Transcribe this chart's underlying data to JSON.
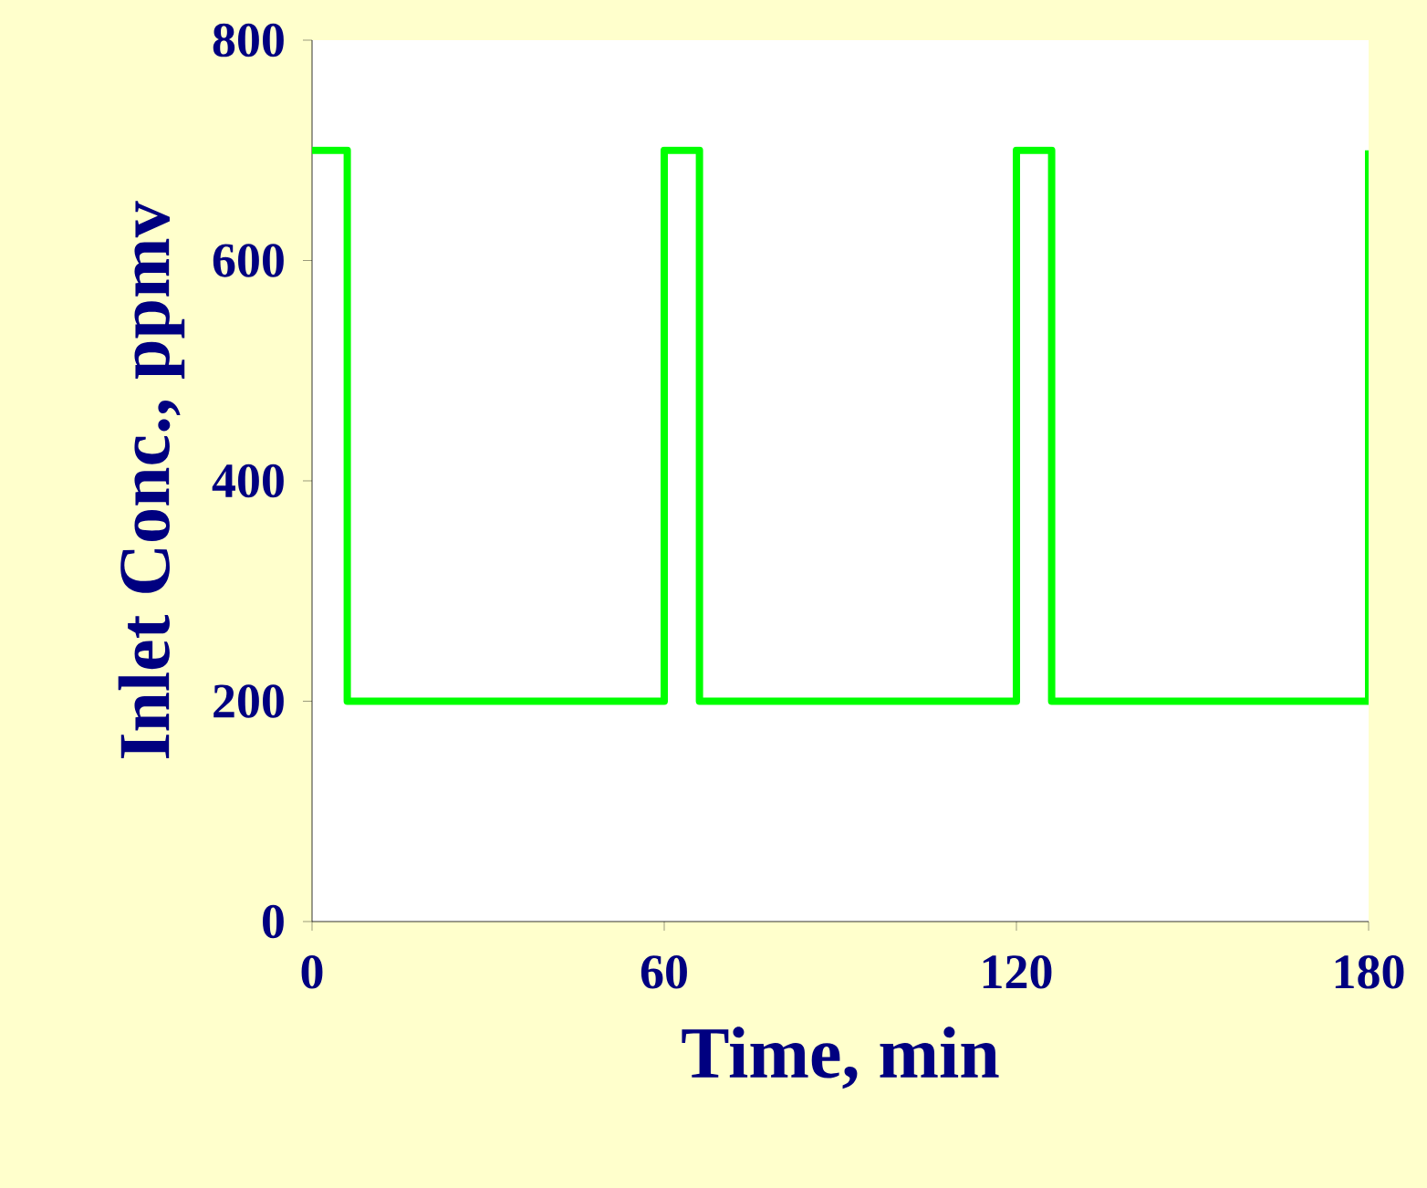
{
  "chart_data": {
    "type": "step",
    "xlabel": "Time, min",
    "ylabel": "Inlet Conc., ppmv",
    "x": [
      0,
      6,
      60,
      66,
      120,
      126,
      180
    ],
    "values": [
      700,
      200,
      700,
      200,
      700,
      200,
      700
    ],
    "color": "#00ff00",
    "xlim": [
      0,
      180
    ],
    "xticks": [
      0,
      60,
      120,
      180
    ],
    "ylim": [
      0,
      800
    ],
    "yticks": [
      0,
      200,
      400,
      600,
      800
    ],
    "grid": false,
    "marker": "none",
    "line_style": "solid"
  }
}
